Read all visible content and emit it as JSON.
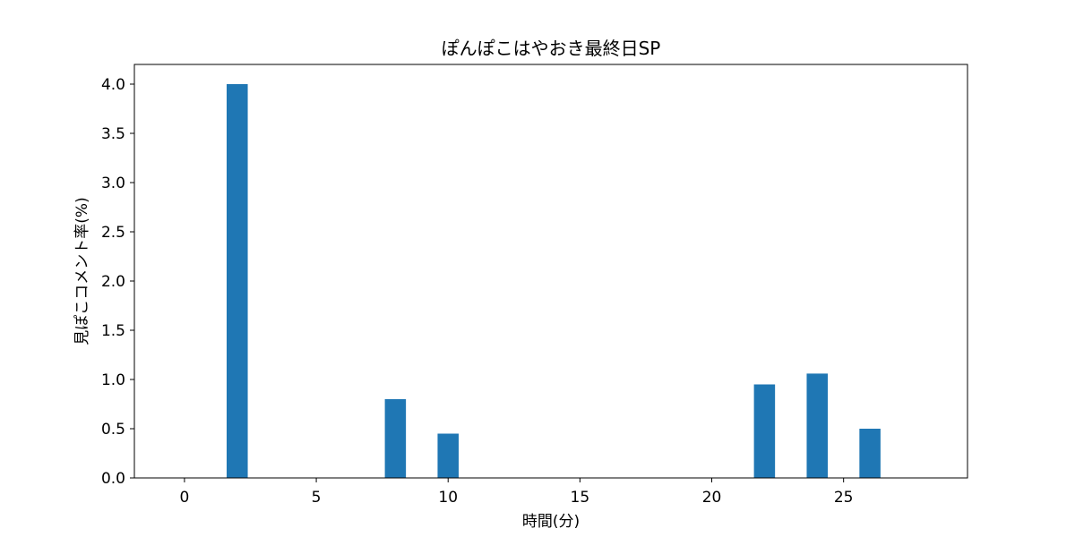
{
  "chart_data": {
    "type": "bar",
    "title": "ぽんぽこはやおき最終日SP",
    "xlabel": "時間(分)",
    "ylabel": "見ぽこコメント率(%)",
    "x": [
      0,
      2,
      4,
      6,
      8,
      10,
      12,
      14,
      16,
      18,
      20,
      22,
      24,
      26,
      28
    ],
    "values": [
      0,
      4.0,
      0,
      0,
      0.8,
      0.45,
      0,
      0,
      0,
      0,
      0,
      0.95,
      1.06,
      0.5,
      0
    ],
    "xlim": [
      -1.9,
      29.7
    ],
    "ylim": [
      0,
      4.2
    ],
    "xticks": [
      0,
      5,
      10,
      15,
      20,
      25
    ],
    "xtick_labels": [
      "0",
      "5",
      "10",
      "15",
      "20",
      "25"
    ],
    "yticks": [
      0.0,
      0.5,
      1.0,
      1.5,
      2.0,
      2.5,
      3.0,
      3.5,
      4.0
    ],
    "ytick_labels": [
      "0.0",
      "0.5",
      "1.0",
      "1.5",
      "2.0",
      "2.5",
      "3.0",
      "3.5",
      "4.0"
    ],
    "bar_color": "#1f77b4",
    "grid": false
  }
}
